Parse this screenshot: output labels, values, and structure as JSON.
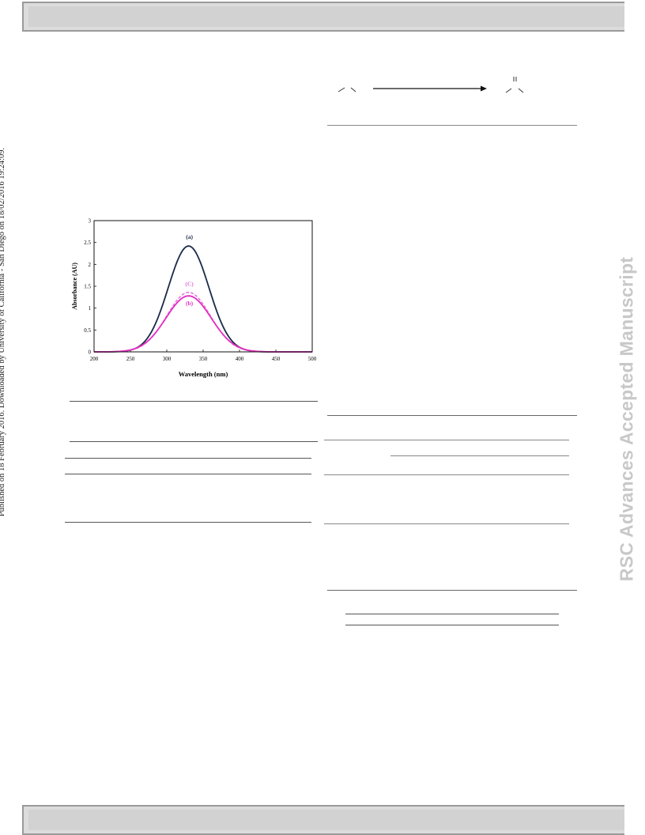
{
  "side_note": "Published on 18 February 2016. Downloaded by University of California - San Diego on 18/02/2016 19:24:09.",
  "watermark": "RSC Advances Accepted Manuscript",
  "colors": {
    "curve_a": "#1b2a4a",
    "curve_b": "#e52fc3",
    "curve_c": "#e070d8",
    "band": "#d2d2d2"
  },
  "chart_data": {
    "type": "line",
    "xlabel": "Wavelength (nm)",
    "ylabel": "Absorbance (AU)",
    "xlim": [
      200,
      500
    ],
    "ylim": [
      0,
      3
    ],
    "xticks": [
      200,
      250,
      300,
      350,
      400,
      450,
      500
    ],
    "yticks": [
      0,
      0.5,
      1,
      1.5,
      2,
      2.5,
      3
    ],
    "grid": false,
    "series": [
      {
        "name": "(a)",
        "peak_x": 330,
        "peak_y": 2.42,
        "width": 28,
        "style": "solid",
        "color": "#1b2a4a"
      },
      {
        "name": "(C)",
        "peak_x": 330,
        "peak_y": 1.36,
        "width": 30,
        "style": "dashed",
        "color": "#e070d8"
      },
      {
        "name": "(b)",
        "peak_x": 330,
        "peak_y": 1.28,
        "width": 31,
        "style": "solid",
        "color": "#e52fc3"
      }
    ]
  }
}
